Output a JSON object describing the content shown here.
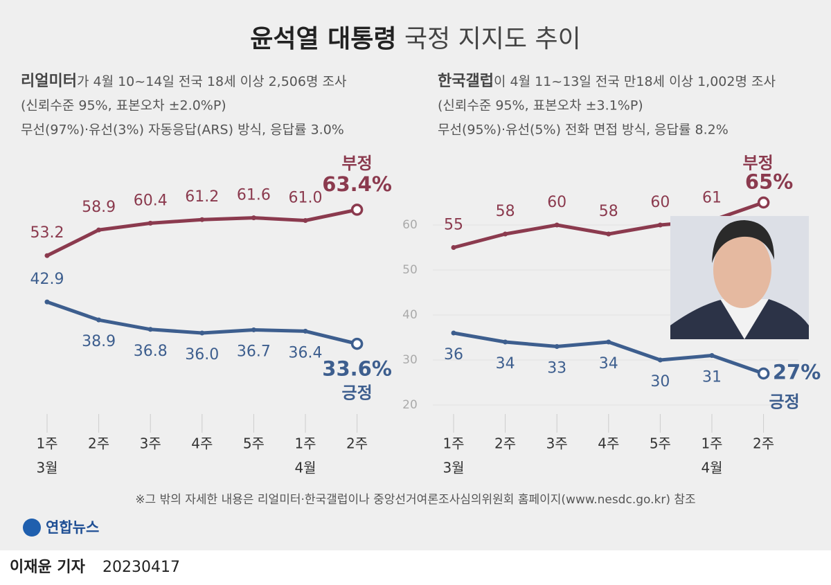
{
  "title_bold": "윤석열 대통령",
  "title": "국정 지지도 추이",
  "chart_data": [
    {
      "type": "line",
      "source": "리얼미터",
      "subtitle": [
        "가 4월 10~14일 전국 18세 이상 2,506명 조사",
        "(신뢰수준 95%, 표본오차 ±2.0%P)",
        "무선(97%)·유선(3%) 자동응답(ARS) 방식, 응답률 3.0%"
      ],
      "categories": [
        "1주",
        "2주",
        "3주",
        "4주",
        "5주",
        "1주",
        "2주"
      ],
      "month_labels": [
        "3월",
        null,
        null,
        null,
        null,
        "4월",
        null
      ],
      "ylim": [
        18,
        68
      ],
      "series": [
        {
          "name": "부정",
          "color": "#8b3a4e",
          "values": [
            53.2,
            58.9,
            60.4,
            61.2,
            61.6,
            61.0,
            63.4
          ],
          "value_labels": [
            "53.2",
            "58.9",
            "60.4",
            "61.2",
            "61.6",
            "61.0",
            "63.4%"
          ]
        },
        {
          "name": "긍정",
          "color": "#3d5e8e",
          "values": [
            42.9,
            38.9,
            36.8,
            36.0,
            36.7,
            36.4,
            33.6
          ],
          "value_labels": [
            "42.9",
            "38.9",
            "36.8",
            "36.0",
            "36.7",
            "36.4",
            "33.6%"
          ]
        }
      ]
    },
    {
      "type": "line",
      "source": "한국갤럽",
      "subtitle": [
        "이 4월 11~13일 전국 만18세 이상 1,002명 조사",
        "(신뢰수준 95%, 표본오차 ±3.1%P)",
        "무선(95%)·유선(5%) 전화 면접 방식, 응답률 8.2%"
      ],
      "categories": [
        "1주",
        "2주",
        "3주",
        "4주",
        "5주",
        "1주",
        "2주"
      ],
      "month_labels": [
        "3월",
        null,
        null,
        null,
        null,
        "4월",
        null
      ],
      "ylim": [
        18,
        68
      ],
      "yticks": [
        20,
        30,
        40,
        50,
        60
      ],
      "grid": true,
      "series": [
        {
          "name": "부정",
          "color": "#8b3a4e",
          "values": [
            55,
            58,
            60,
            58,
            60,
            61,
            65
          ],
          "value_labels": [
            "55",
            "58",
            "60",
            "58",
            "60",
            "61",
            "65%"
          ]
        },
        {
          "name": "긍정",
          "color": "#3d5e8e",
          "values": [
            36,
            34,
            33,
            34,
            30,
            31,
            27
          ],
          "value_labels": [
            "36",
            "34",
            "33",
            "34",
            "30",
            "31",
            "27%"
          ]
        }
      ]
    }
  ],
  "footnote": "※그 밖의 자세한 내용은 리얼미터·한국갤럽이나 중앙선거여론조사심의위원회 홈페이지(www.nesdc.go.kr) 참조",
  "logo": "연합뉴스",
  "byline": "이재윤 기자",
  "date": "20230417"
}
